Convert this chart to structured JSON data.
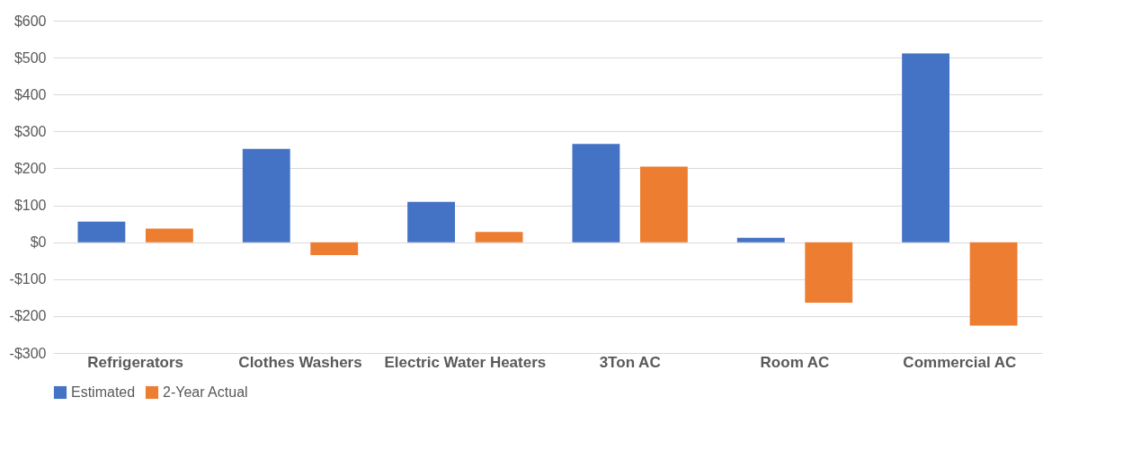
{
  "chart_data": {
    "type": "bar",
    "categories": [
      "Refrigerators",
      "Clothes Washers",
      "Electric Water Heaters",
      "3Ton AC",
      "Room AC",
      "Commercial AC"
    ],
    "series": [
      {
        "name": "Estimated",
        "color": "#4472c4",
        "values": [
          56,
          253,
          109,
          266,
          12,
          511
        ]
      },
      {
        "name": "2-Year Actual",
        "color": "#ed7d31",
        "values": [
          37,
          -35,
          28,
          205,
          -164,
          -226
        ]
      }
    ],
    "ylim": [
      -300,
      600
    ],
    "yticks": [
      {
        "value": -300,
        "label": "-$300"
      },
      {
        "value": -200,
        "label": "-$200"
      },
      {
        "value": -100,
        "label": "-$100"
      },
      {
        "value": 0,
        "label": "$0"
      },
      {
        "value": 100,
        "label": "$100"
      },
      {
        "value": 200,
        "label": "$200"
      },
      {
        "value": 300,
        "label": "$300"
      },
      {
        "value": 400,
        "label": "$400"
      },
      {
        "value": 500,
        "label": "$500"
      },
      {
        "value": 600,
        "label": "$600"
      }
    ],
    "grid": "y",
    "legend": "bottom"
  }
}
